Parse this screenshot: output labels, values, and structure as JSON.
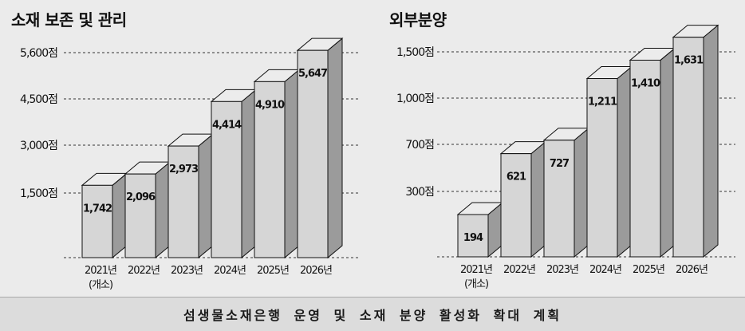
{
  "colors": {
    "bar_front": "#d6d6d6",
    "bar_top": "#ececec",
    "bar_side": "#9b9b9b",
    "bar_stroke": "#111111",
    "gridline": "#333333",
    "background": "#ebebeb"
  },
  "footer": {
    "text": "섬생물소재은행 운영 및 소재 분양 활성화 확대 계획"
  },
  "chart_data": [
    {
      "type": "bar",
      "style": "3d",
      "title": "소재 보존 및 관리",
      "categories": [
        "2021년\n(개소)",
        "2022년",
        "2023년",
        "2024년",
        "2025년",
        "2026년"
      ],
      "values": [
        1742,
        2096,
        2973,
        4414,
        4910,
        5647
      ],
      "value_labels": [
        "1,742",
        "2,096",
        "2,973",
        "4,414",
        "4,910",
        "5,647"
      ],
      "y_ticks": [
        {
          "value": 1500,
          "label": "1,500점"
        },
        {
          "value": 3000,
          "label": "3,000점"
        },
        {
          "value": 4500,
          "label": "4,500점"
        },
        {
          "value": 5600,
          "label": "5,600점"
        }
      ],
      "ylim": [
        0,
        6200
      ],
      "grid": "dashed"
    },
    {
      "type": "bar",
      "style": "3d",
      "title": "외부분양",
      "categories": [
        "2021년\n(개소)",
        "2022년",
        "2023년",
        "2024년",
        "2025년",
        "2026년"
      ],
      "values": [
        194,
        621,
        727,
        1211,
        1410,
        1631
      ],
      "value_labels": [
        "194",
        "621",
        "727",
        "1,211",
        "1,410",
        "1,631"
      ],
      "y_ticks": [
        {
          "value": 300,
          "label": "300점"
        },
        {
          "value": 700,
          "label": "700점"
        },
        {
          "value": 1000,
          "label": "1,000점"
        },
        {
          "value": 1500,
          "label": "1,500점"
        }
      ],
      "ylim": [
        0,
        1750
      ],
      "grid": "dashed",
      "scale_note": "non-linear axis; labeled ticks define piecewise scale"
    }
  ]
}
